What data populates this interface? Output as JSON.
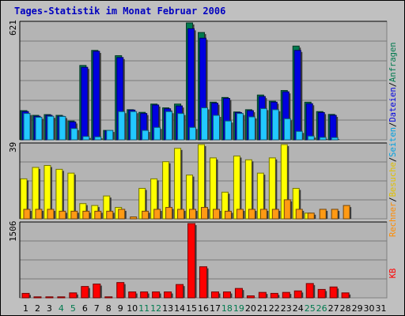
{
  "title": "Tages-Statistik im Monat Februar 2006",
  "colors": {
    "background": "#c0c0c0",
    "plot_bg": "#b4b4b4",
    "hits": "#007a4e",
    "files": "#0000e0",
    "pages": "#22c8ff",
    "visits": "#ffff00",
    "sites": "#ff9a14",
    "kbytes": "#ff0000",
    "weekend_day": "#007a4e",
    "weekday": "#000000"
  },
  "right_labels": {
    "kbytes": {
      "text": "KB",
      "color": "#ff0000"
    },
    "sites": {
      "text": "Rechner",
      "color": "#ff8c00"
    },
    "sep1": {
      "text": " / ",
      "color": "#000000"
    },
    "visits": {
      "text": "Besuche",
      "color": "#e0c000"
    },
    "sep2": {
      "text": " / ",
      "color": "#000000"
    },
    "pages": {
      "text": "Seiten",
      "color": "#00a0e0"
    },
    "sep3": {
      "text": " / ",
      "color": "#000000"
    },
    "files": {
      "text": "Dateien",
      "color": "#0000e0"
    },
    "sep4": {
      "text": " / ",
      "color": "#000000"
    },
    "hits": {
      "text": "Anfragen",
      "color": "#007a4e"
    }
  },
  "chart_data": [
    {
      "type": "bar",
      "ymax_label": "621",
      "ylim": [
        0,
        621
      ],
      "categories": [
        "1",
        "2",
        "3",
        "4",
        "5",
        "6",
        "7",
        "8",
        "9",
        "10",
        "11",
        "12",
        "13",
        "14",
        "15",
        "16",
        "17",
        "18",
        "19",
        "20",
        "21",
        "22",
        "23",
        "24",
        "25",
        "26",
        "27",
        "28",
        "29",
        "30",
        "31"
      ],
      "weekend_days": [
        4,
        5,
        11,
        12,
        18,
        19,
        25,
        26
      ],
      "series": [
        {
          "name": "Anfragen",
          "values": [
            155,
            130,
            134,
            130,
            100,
            395,
            475,
            50,
            447,
            160,
            146,
            190,
            170,
            190,
            621,
            570,
            200,
            225,
            148,
            160,
            238,
            205,
            262,
            498,
            200,
            150,
            135,
            0,
            0,
            0,
            0
          ]
        },
        {
          "name": "Dateien",
          "values": [
            150,
            125,
            130,
            125,
            95,
            385,
            470,
            48,
            437,
            158,
            140,
            185,
            165,
            180,
            590,
            540,
            195,
            220,
            145,
            155,
            230,
            200,
            255,
            475,
            192,
            145,
            130,
            0,
            0,
            0,
            0
          ]
        },
        {
          "name": "Seiten",
          "values": [
            140,
            120,
            125,
            124,
            60,
            18,
            16,
            50,
            150,
            150,
            50,
            66,
            150,
            140,
            66,
            170,
            130,
            100,
            140,
            122,
            166,
            160,
            112,
            45,
            20,
            13,
            12,
            0,
            0,
            0,
            0
          ]
        }
      ]
    },
    {
      "type": "bar",
      "ymax_label": "39",
      "ylim": [
        0,
        39
      ],
      "categories": [
        "1",
        "2",
        "3",
        "4",
        "5",
        "6",
        "7",
        "8",
        "9",
        "10",
        "11",
        "12",
        "13",
        "14",
        "15",
        "16",
        "17",
        "18",
        "19",
        "20",
        "21",
        "22",
        "23",
        "24",
        "25",
        "26",
        "27",
        "28",
        "29",
        "30",
        "31"
      ],
      "series": [
        {
          "name": "Besuche",
          "values": [
            21,
            27,
            28,
            26,
            24,
            8,
            7,
            12,
            6,
            0,
            16,
            21,
            30,
            37,
            23,
            39,
            32,
            14,
            33,
            31,
            24,
            32,
            39,
            16,
            3,
            0,
            0,
            0,
            0,
            0,
            0
          ]
        },
        {
          "name": "Rechner",
          "values": [
            5,
            5,
            5,
            4,
            4,
            4,
            4,
            4,
            5,
            1,
            4,
            5,
            6,
            5,
            5,
            6,
            5,
            4,
            5,
            5,
            5,
            5,
            10,
            5,
            3,
            5,
            5,
            7,
            0,
            0,
            0
          ]
        }
      ]
    },
    {
      "type": "bar",
      "ymax_label": "1506",
      "ylim": [
        0,
        1506
      ],
      "categories": [
        "1",
        "2",
        "3",
        "4",
        "5",
        "6",
        "7",
        "8",
        "9",
        "10",
        "11",
        "12",
        "13",
        "14",
        "15",
        "16",
        "17",
        "18",
        "19",
        "20",
        "21",
        "22",
        "23",
        "24",
        "25",
        "26",
        "27",
        "28",
        "29",
        "30",
        "31"
      ],
      "series": [
        {
          "name": "KB",
          "values": [
            90,
            20,
            20,
            20,
            100,
            230,
            280,
            20,
            310,
            120,
            120,
            120,
            120,
            270,
            1506,
            630,
            120,
            120,
            190,
            40,
            110,
            90,
            110,
            140,
            290,
            170,
            220,
            100,
            0,
            0,
            0
          ]
        }
      ]
    }
  ]
}
